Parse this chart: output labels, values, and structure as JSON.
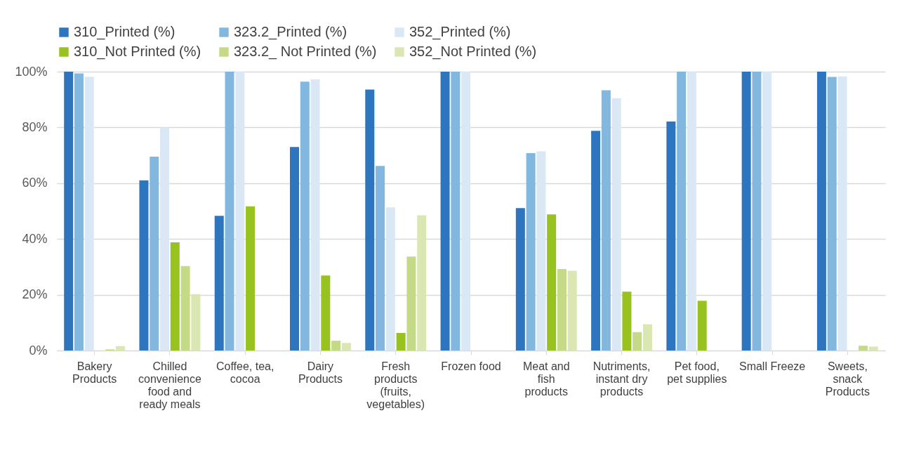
{
  "chart_data": {
    "type": "bar",
    "categories": [
      "Bakery Products",
      "Chilled convenience food and ready meals",
      "Coffee, tea, cocoa",
      "Dairy Products",
      "Fresh products (fruits, vegetables)",
      "Frozen food",
      "Meat and fish products",
      "Nutriments, instant dry products",
      "Pet food, pet supplies",
      "Small Freeze",
      "Sweets, snack Products"
    ],
    "series": [
      {
        "name": "310_Printed (%)",
        "color": "#2e75c0",
        "values": [
          100,
          61,
          48.3,
          73,
          93.6,
          100,
          51.1,
          78.8,
          82.1,
          100,
          100
        ]
      },
      {
        "name": "323.2_Printed (%)",
        "color": "#82b7e0",
        "values": [
          99.4,
          69.5,
          100,
          96.4,
          66.2,
          100,
          70.8,
          93.3,
          100,
          100,
          98.1
        ]
      },
      {
        "name": "352_Printed (%)",
        "color": "#dae8f6",
        "values": [
          98.2,
          80,
          100,
          97.2,
          51.3,
          100,
          71.4,
          90.5,
          100,
          100,
          98.3
        ]
      },
      {
        "name": "310_Not Printed (%)",
        "color": "#98c21f",
        "values": [
          0,
          38.8,
          51.7,
          26.9,
          6.3,
          0,
          48.8,
          21.1,
          17.8,
          0,
          0
        ]
      },
      {
        "name": "323.2_ Not Printed (%)",
        "color": "#c5da86",
        "values": [
          0.4,
          30.3,
          0,
          3.5,
          33.7,
          0,
          29.2,
          6.6,
          0,
          0,
          1.7
        ]
      },
      {
        "name": "352_Not Printed (%)",
        "color": "#dbe7b3",
        "values": [
          1.6,
          20.2,
          0,
          2.7,
          48.5,
          0,
          28.6,
          9.4,
          0,
          0,
          1.4
        ]
      }
    ],
    "ylim": [
      0,
      100
    ],
    "yticks": [
      {
        "value": 0,
        "label": "0%"
      },
      {
        "value": 20,
        "label": "20%"
      },
      {
        "value": 40,
        "label": "40%"
      },
      {
        "value": 60,
        "label": "60%"
      },
      {
        "value": 80,
        "label": "80%"
      },
      {
        "value": 100,
        "label": "100%"
      }
    ],
    "grid": "y",
    "legend": "top"
  }
}
